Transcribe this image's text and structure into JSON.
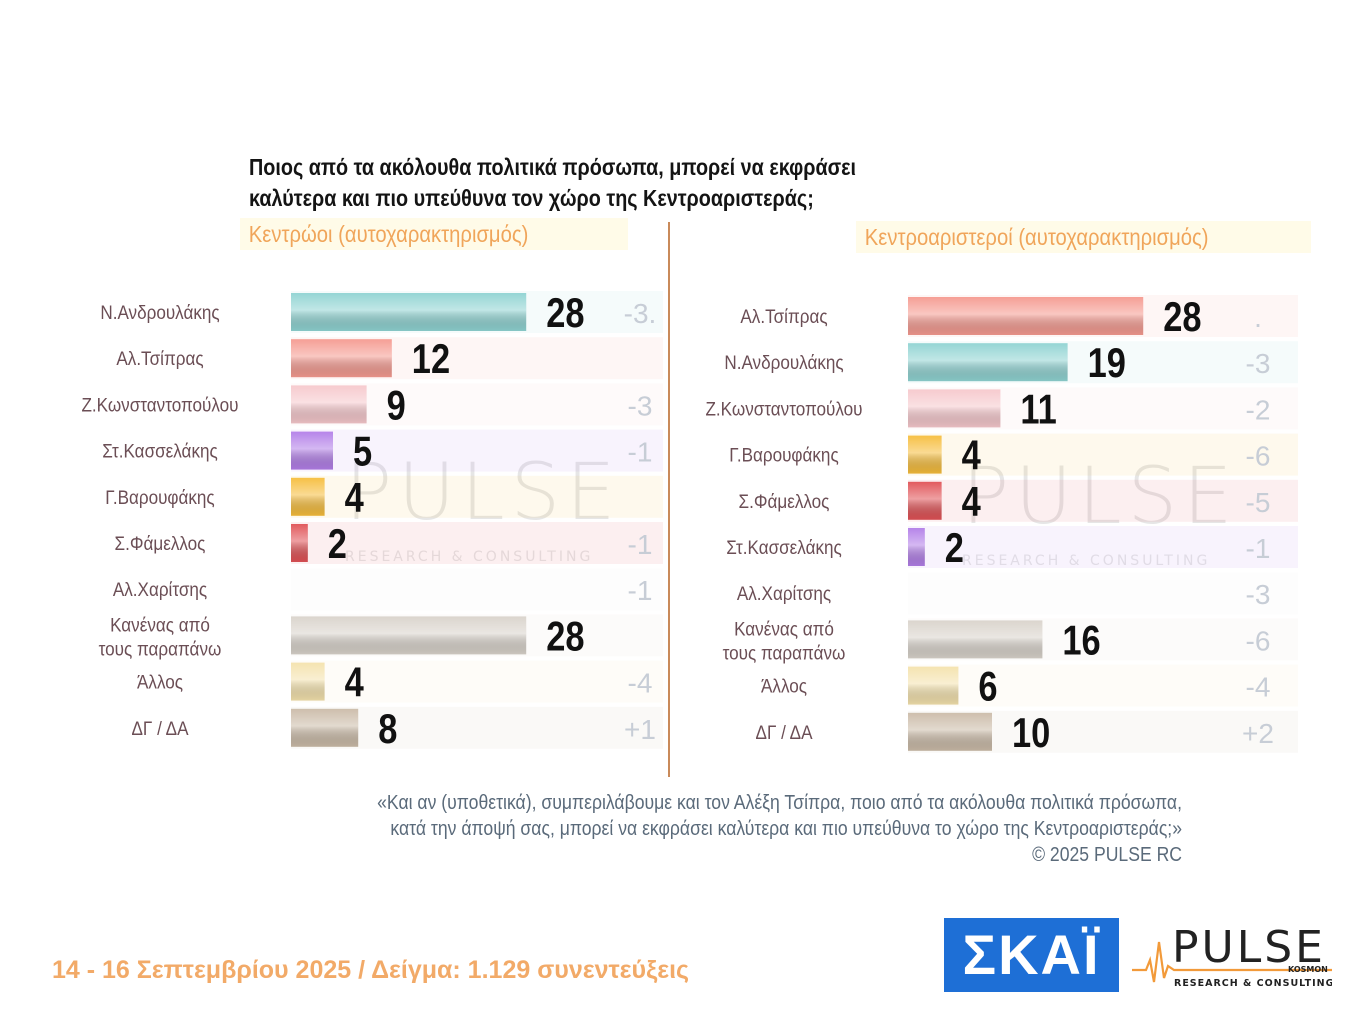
{
  "title": {
    "line1": "Ποιος από τα ακόλουθα πολιτικά πρόσωπα, μπορεί να εκφράσει",
    "line2": "καλύτερα και πιο υπεύθυνα τον χώρο της Κεντροαριστεράς;"
  },
  "watermark": {
    "main": "PULSE",
    "sub": "RESEARCH & CONSULTING",
    "kosmon": "KOSMON"
  },
  "chart_data": [
    {
      "type": "bar",
      "orientation": "horizontal",
      "subtitle": "Κεντρώοι  (αυτοχαρακτηρισμός)",
      "xlim": [
        0,
        40
      ],
      "categories": [
        {
          "label": "Ν.Ανδρουλάκης",
          "value": 28,
          "value_label": "28",
          "change": "-3.",
          "color": "#8fd3d2"
        },
        {
          "label": "Αλ.Τσίπρας",
          "value": 12,
          "value_label": "12",
          "change": "",
          "color": "#f59a90"
        },
        {
          "label": "Ζ.Κωνσταντοπούλου",
          "value": 9,
          "value_label": "9",
          "change": "-3",
          "color": "#f6c8cc"
        },
        {
          "label": "Στ.Κασσελάκης",
          "value": 5,
          "value_label": "5",
          "change": "-1",
          "color": "#b27ee8"
        },
        {
          "label": "Γ.Βαρουφάκης",
          "value": 4,
          "value_label": "4",
          "change": "",
          "color": "#f6bd3c"
        },
        {
          "label": "Σ.Φάμελλος",
          "value": 2,
          "value_label": "2",
          "change": "-1",
          "color": "#e05256"
        },
        {
          "label": "Αλ.Χαρίτσης",
          "value": 0,
          "value_label": "",
          "change": "-1",
          "color": "#eeeeee"
        },
        {
          "label": "Κανένας από|τους παραπάνω",
          "value": 28,
          "value_label": "28",
          "change": "",
          "color": "#d9d3cb"
        },
        {
          "label": "Άλλος",
          "value": 4,
          "value_label": "4",
          "change": "-4",
          "color": "#f4e2ad"
        },
        {
          "label": "ΔΓ / ΔΑ",
          "value": 8,
          "value_label": "8",
          "change": "+1",
          "color": "#cbbba8"
        }
      ]
    },
    {
      "type": "bar",
      "orientation": "horizontal",
      "subtitle": "Κεντροαριστεροί  (αυτοχαρακτηρισμός)",
      "xlim": [
        0,
        40
      ],
      "categories": [
        {
          "label": "Αλ.Τσίπρας",
          "value": 28,
          "value_label": "28",
          "change": ".",
          "color": "#f59a90"
        },
        {
          "label": "Ν.Ανδρουλάκης",
          "value": 19,
          "value_label": "19",
          "change": "-3",
          "color": "#8fd3d2"
        },
        {
          "label": "Ζ.Κωνσταντοπούλου",
          "value": 11,
          "value_label": "11",
          "change": "-2",
          "color": "#f6c8cc"
        },
        {
          "label": "Γ.Βαρουφάκης",
          "value": 4,
          "value_label": "4",
          "change": "-6",
          "color": "#f6bd3c"
        },
        {
          "label": "Σ.Φάμελλος",
          "value": 4,
          "value_label": "4",
          "change": "-5",
          "color": "#e05256"
        },
        {
          "label": "Στ.Κασσελάκης",
          "value": 2,
          "value_label": "2",
          "change": "-1",
          "color": "#b27ee8"
        },
        {
          "label": "Αλ.Χαρίτσης",
          "value": 0,
          "value_label": "",
          "change": "-3",
          "color": "#eeeeee"
        },
        {
          "label": "Κανένας από|τους παραπάνω",
          "value": 16,
          "value_label": "16",
          "change": "-6",
          "color": "#d9d3cb"
        },
        {
          "label": "Άλλος",
          "value": 6,
          "value_label": "6",
          "change": "-4",
          "color": "#f4e2ad"
        },
        {
          "label": "ΔΓ / ΔΑ",
          "value": 10,
          "value_label": "10",
          "change": "+2",
          "color": "#cbbba8"
        }
      ]
    }
  ],
  "footnote": {
    "line1": "«Και αν (υποθετικά), συμπεριλάβουμε και τον Αλέξη Τσίπρα, ποιο από τα ακόλουθα πολιτικά πρόσωπα,",
    "line2": "κατά την άποψή σας, μπορεί να εκφράσει καλύτερα και πιο υπεύθυνα το χώρο της Κεντροαριστεράς;»",
    "line3": "©  2025  PULSE RC"
  },
  "date_sample": "14 - 16 Σεπτεμβρίου 2025  /  Δείγμα:  1.129 συνεντεύξεις",
  "logos": {
    "skai": "ΣΚΑΪ",
    "pulse": "PULSE",
    "pulse_sub": "RESEARCH & CONSULTING",
    "pulse_kosmon": "KOSMON"
  }
}
